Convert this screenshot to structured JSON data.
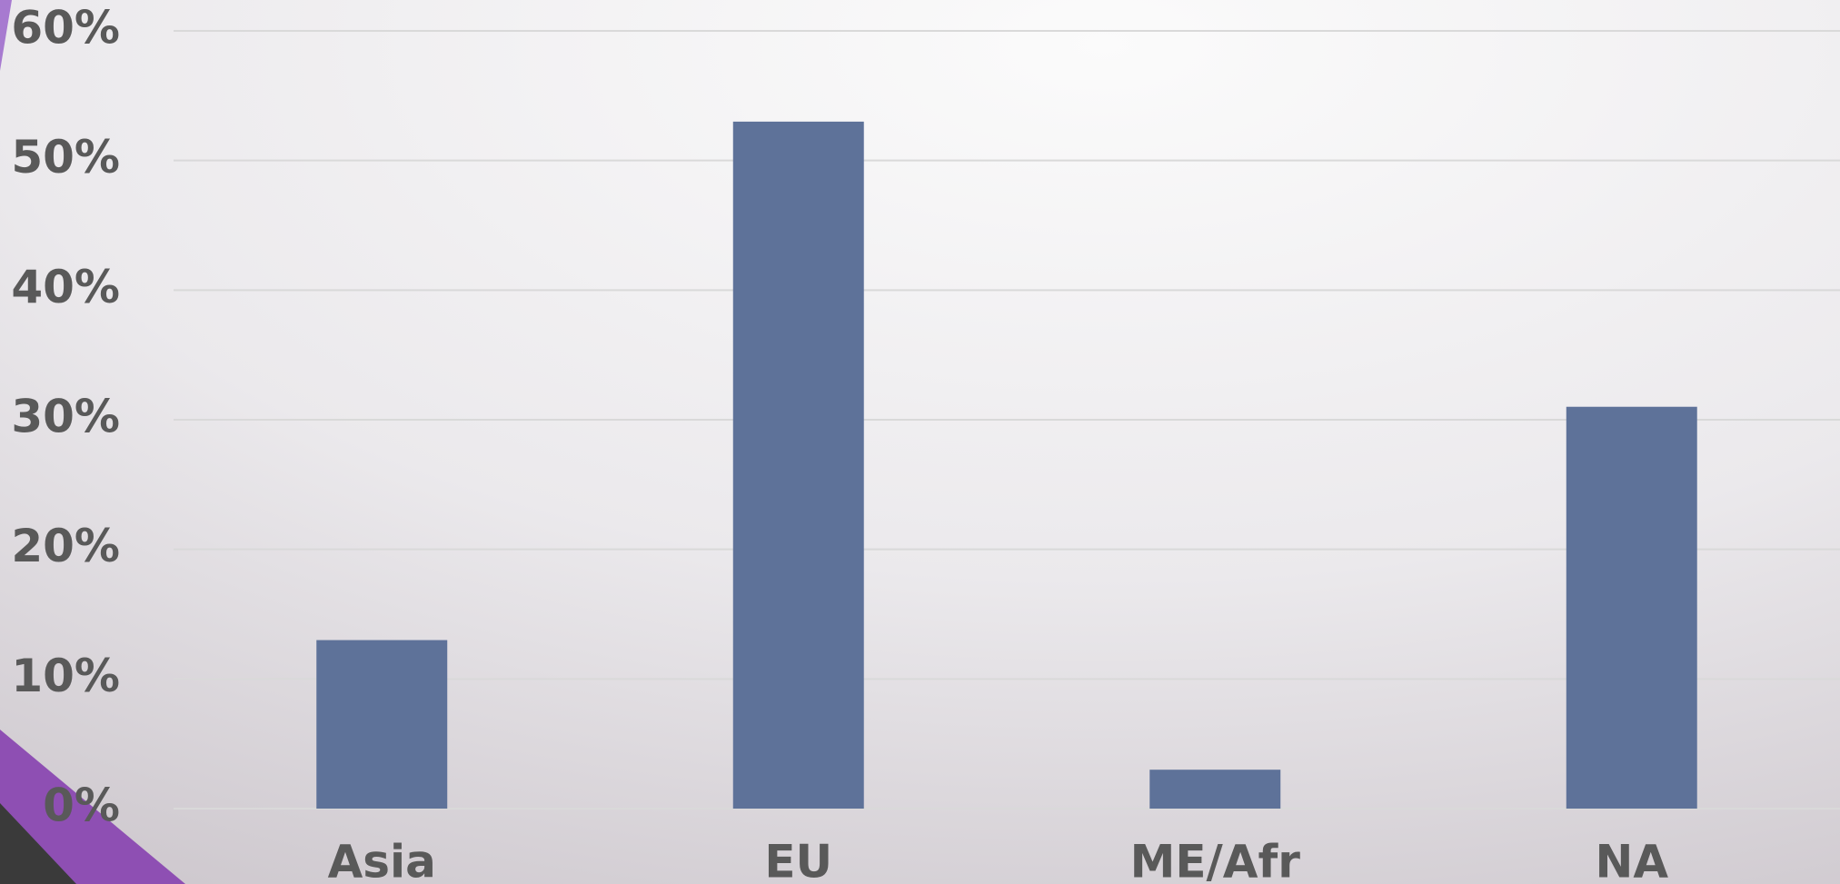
{
  "chart_data": {
    "type": "bar",
    "categories": [
      "Asia",
      "EU",
      "ME/Afr",
      "NA"
    ],
    "values": [
      13,
      53,
      3,
      31
    ],
    "color": "#5e7299",
    "ylim": [
      0,
      60
    ],
    "yticks": [
      {
        "value": 0,
        "label": "0%"
      },
      {
        "value": 10,
        "label": "10%"
      },
      {
        "value": 20,
        "label": "20%"
      },
      {
        "value": 30,
        "label": "30%"
      },
      {
        "value": 40,
        "label": "40%"
      },
      {
        "value": 50,
        "label": "50%"
      },
      {
        "value": 60,
        "label": "60%"
      }
    ],
    "grid": true
  }
}
